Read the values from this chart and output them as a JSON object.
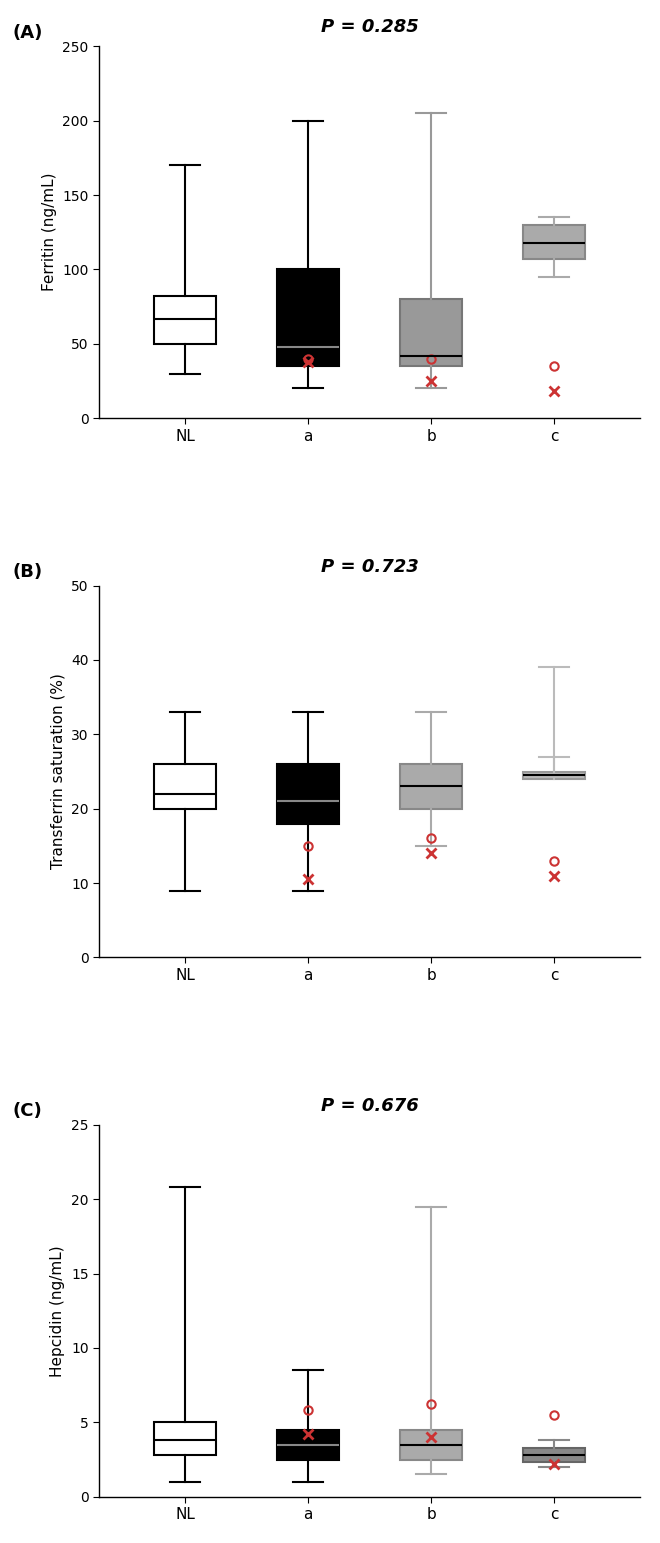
{
  "panels": [
    {
      "label": "(A)",
      "p_value": "P = 0.285",
      "ylabel": "Ferritin (ng/mL)",
      "ylim": [
        0,
        250
      ],
      "yticks": [
        0,
        50,
        100,
        150,
        200,
        250
      ],
      "categories": [
        "NL",
        "a",
        "b",
        "c"
      ],
      "box_fill_colors": [
        "white",
        "#000000",
        "#999999",
        "#aaaaaa"
      ],
      "box_edge_colors": [
        "black",
        "black",
        "#777777",
        "#888888"
      ],
      "whisker_colors": [
        "black",
        "black",
        "#999999",
        "#aaaaaa"
      ],
      "median_colors": [
        "black",
        "#888888",
        "black",
        "black"
      ],
      "boxes": [
        {
          "q1": 50,
          "median": 67,
          "q3": 82,
          "whislo": 30,
          "whishi": 170
        },
        {
          "q1": 35,
          "median": 48,
          "q3": 100,
          "whislo": 20,
          "whishi": 200
        },
        {
          "q1": 35,
          "median": 42,
          "q3": 80,
          "whislo": 20,
          "whishi": 205
        },
        {
          "q1": 107,
          "median": 118,
          "q3": 130,
          "whislo": 95,
          "whishi": 135
        }
      ],
      "outliers_circle": [
        null,
        40,
        40,
        35
      ],
      "outliers_x": [
        null,
        38,
        25,
        18
      ]
    },
    {
      "label": "(B)",
      "p_value": "P = 0.723",
      "ylabel": "Transferrin saturation (%)",
      "ylim": [
        0,
        50
      ],
      "yticks": [
        0,
        10,
        20,
        30,
        40,
        50
      ],
      "categories": [
        "NL",
        "a",
        "b",
        "c"
      ],
      "box_fill_colors": [
        "white",
        "#000000",
        "#aaaaaa",
        "#bbbbbb"
      ],
      "box_edge_colors": [
        "black",
        "black",
        "#888888",
        "#999999"
      ],
      "whisker_colors": [
        "black",
        "black",
        "#aaaaaa",
        "#bbbbbb"
      ],
      "median_colors": [
        "black",
        "#888888",
        "black",
        "black"
      ],
      "boxes": [
        {
          "q1": 20,
          "median": 22,
          "q3": 26,
          "whislo": 9,
          "whishi": 33
        },
        {
          "q1": 18,
          "median": 21,
          "q3": 26,
          "whislo": 9,
          "whishi": 33
        },
        {
          "q1": 20,
          "median": 23,
          "q3": 26,
          "whislo": 15,
          "whishi": 33
        },
        {
          "q1": 24,
          "median": 24.5,
          "q3": 25,
          "whislo": 27,
          "whishi": 39
        }
      ],
      "outliers_circle": [
        null,
        15,
        16,
        13
      ],
      "outliers_x": [
        null,
        10.5,
        14,
        11
      ]
    },
    {
      "label": "(C)",
      "p_value": "P = 0.676",
      "ylabel": "Hepcidin (ng/mL)",
      "ylim": [
        0,
        25
      ],
      "yticks": [
        0,
        5,
        10,
        15,
        20,
        25
      ],
      "categories": [
        "NL",
        "a",
        "b",
        "c"
      ],
      "box_fill_colors": [
        "white",
        "#000000",
        "#aaaaaa",
        "#888888"
      ],
      "box_edge_colors": [
        "black",
        "black",
        "#888888",
        "#666666"
      ],
      "whisker_colors": [
        "black",
        "black",
        "#aaaaaa",
        "#888888"
      ],
      "median_colors": [
        "black",
        "#888888",
        "black",
        "black"
      ],
      "boxes": [
        {
          "q1": 2.8,
          "median": 3.8,
          "q3": 5.0,
          "whislo": 1.0,
          "whishi": 20.8
        },
        {
          "q1": 2.5,
          "median": 3.5,
          "q3": 4.5,
          "whislo": 1.0,
          "whishi": 8.5
        },
        {
          "q1": 2.5,
          "median": 3.5,
          "q3": 4.5,
          "whislo": 1.5,
          "whishi": 19.5
        },
        {
          "q1": 2.3,
          "median": 2.8,
          "q3": 3.3,
          "whislo": 2.0,
          "whishi": 3.8
        }
      ],
      "outliers_circle": [
        null,
        5.8,
        6.2,
        5.5
      ],
      "outliers_x": [
        null,
        4.2,
        4.0,
        2.2
      ]
    }
  ],
  "figsize": [
    6.6,
    15.43
  ],
  "dpi": 100,
  "panel_label_fontsize": 13,
  "p_value_fontsize": 13,
  "ylabel_fontsize": 11,
  "tick_fontsize": 10,
  "xticklabel_fontsize": 11,
  "box_width": 0.5,
  "outlier_color": "#cc3333",
  "background_color": "white"
}
